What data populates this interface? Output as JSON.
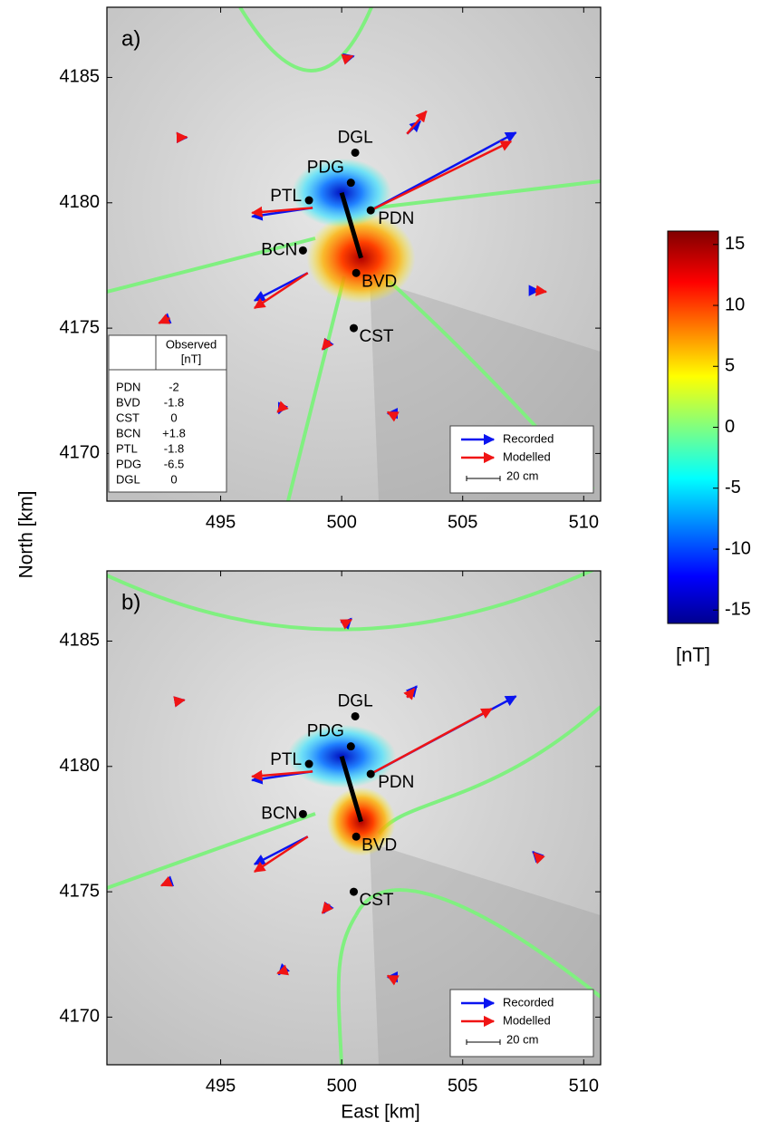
{
  "chart_data": [
    {
      "type": "vector-map",
      "title": "a)",
      "xlim": [
        490.3,
        510.7
      ],
      "ylim": [
        4168.1,
        4187.8
      ],
      "xticks": [
        495,
        500,
        505,
        510
      ],
      "yticks": [
        4170,
        4175,
        4180,
        4185
      ],
      "fault": {
        "x": [
          500.0,
          500.8
        ],
        "y": [
          4180.4,
          4177.8
        ]
      },
      "stations": [
        {
          "name": "DGL",
          "x": 500.56,
          "y": 4182.0
        },
        {
          "name": "PDG",
          "x": 500.38,
          "y": 4180.8
        },
        {
          "name": "PTL",
          "x": 498.65,
          "y": 4180.1
        },
        {
          "name": "PDN",
          "x": 501.2,
          "y": 4179.7
        },
        {
          "name": "BCN",
          "x": 498.4,
          "y": 4178.1
        },
        {
          "name": "BVD",
          "x": 500.6,
          "y": 4177.2
        },
        {
          "name": "CST",
          "x": 500.5,
          "y": 4175.0
        }
      ],
      "vectors": [
        {
          "x": 500.3,
          "y": 4185.8,
          "recorded": [
            0.2,
            0.05
          ],
          "modelled": [
            0.15,
            0.05
          ]
        },
        {
          "x": 493.2,
          "y": 4182.6,
          "recorded": [
            0.4,
            0
          ],
          "modelled": [
            0.4,
            0.02
          ]
        },
        {
          "x": 501.2,
          "y": 4179.7,
          "recorded": [
            6.0,
            3.1
          ],
          "modelled": [
            5.8,
            2.75
          ]
        },
        {
          "x": 502.7,
          "y": 4182.75,
          "recorded": [
            0.55,
            0.5
          ],
          "modelled": [
            0.8,
            0.9
          ]
        },
        {
          "x": 498.8,
          "y": 4179.8,
          "recorded": [
            -2.5,
            -0.35
          ],
          "modelled": [
            -2.5,
            -0.2
          ]
        },
        {
          "x": 498.6,
          "y": 4177.2,
          "recorded": [
            -2.2,
            -1.1
          ],
          "modelled": [
            -2.2,
            -1.4
          ]
        },
        {
          "x": 492.9,
          "y": 4175.4,
          "recorded": [
            -0.4,
            -0.15
          ],
          "modelled": [
            -0.45,
            -0.2
          ]
        },
        {
          "x": 508.0,
          "y": 4176.5,
          "recorded": [
            0.15,
            0
          ],
          "modelled": [
            0.45,
            -0.05
          ]
        },
        {
          "x": 499.5,
          "y": 4174.5,
          "recorded": [
            -0.25,
            -0.35
          ],
          "modelled": [
            -0.3,
            -0.35
          ]
        },
        {
          "x": 497.5,
          "y": 4171.8,
          "recorded": [
            -0.1,
            -0.2
          ],
          "modelled": [
            -0.15,
            -0.15
          ]
        },
        {
          "x": 502.0,
          "y": 4171.6,
          "recorded": [
            -0.1,
            0
          ],
          "modelled": [
            -0.1,
            0.05
          ]
        }
      ],
      "legend": [
        {
          "name": "Recorded",
          "color": "#0a14f0"
        },
        {
          "name": "Modelled",
          "color": "#f01414"
        }
      ],
      "scale_label": "20 cm",
      "table": {
        "header": [
          "Observed",
          "[nT]"
        ],
        "rows": [
          [
            "PDN",
            "-2"
          ],
          [
            "BVD",
            "-1.8"
          ],
          [
            "CST",
            "0"
          ],
          [
            "BCN",
            "+1.8"
          ],
          [
            "PTL",
            "-1.8"
          ],
          [
            "PDG",
            "-6.5"
          ],
          [
            "DGL",
            "0"
          ]
        ]
      }
    },
    {
      "type": "vector-map",
      "title": "b)",
      "xlim": [
        490.3,
        510.7
      ],
      "ylim": [
        4168.1,
        4187.8
      ],
      "xticks": [
        495,
        500,
        505,
        510
      ],
      "yticks": [
        4170,
        4175,
        4180,
        4185
      ],
      "fault": {
        "x": [
          500.0,
          500.8
        ],
        "y": [
          4180.4,
          4177.8
        ]
      },
      "stations": [
        {
          "name": "DGL",
          "x": 500.56,
          "y": 4182.0
        },
        {
          "name": "PDG",
          "x": 500.38,
          "y": 4180.8
        },
        {
          "name": "PTL",
          "x": 498.65,
          "y": 4180.1
        },
        {
          "name": "PDN",
          "x": 501.2,
          "y": 4179.7
        },
        {
          "name": "BCN",
          "x": 498.4,
          "y": 4178.1
        },
        {
          "name": "BVD",
          "x": 500.6,
          "y": 4177.2
        },
        {
          "name": "CST",
          "x": 500.5,
          "y": 4175.0
        }
      ],
      "vectors": [
        {
          "x": 500.3,
          "y": 4185.8,
          "recorded": [
            0.1,
            0.1
          ],
          "modelled": [
            0.1,
            0.05
          ]
        },
        {
          "x": 493.2,
          "y": 4182.6,
          "recorded": [
            0.3,
            0.05
          ],
          "modelled": [
            0.3,
            0.05
          ]
        },
        {
          "x": 501.2,
          "y": 4179.7,
          "recorded": [
            6.0,
            3.1
          ],
          "modelled": [
            5.0,
            2.6
          ]
        },
        {
          "x": 502.7,
          "y": 4182.75,
          "recorded": [
            0.4,
            0.45
          ],
          "modelled": [
            0.3,
            0.35
          ]
        },
        {
          "x": 498.8,
          "y": 4179.8,
          "recorded": [
            -2.5,
            -0.35
          ],
          "modelled": [
            -2.5,
            -0.2
          ]
        },
        {
          "x": 498.6,
          "y": 4177.2,
          "recorded": [
            -2.2,
            -1.1
          ],
          "modelled": [
            -2.2,
            -1.4
          ]
        },
        {
          "x": 492.9,
          "y": 4175.4,
          "recorded": [
            -0.3,
            -0.1
          ],
          "modelled": [
            -0.35,
            -0.15
          ]
        },
        {
          "x": 508.0,
          "y": 4176.5,
          "recorded": [
            -0.1,
            0.1
          ],
          "modelled": [
            -0.05,
            0.05
          ]
        },
        {
          "x": 499.5,
          "y": 4174.5,
          "recorded": [
            -0.25,
            -0.35
          ],
          "modelled": [
            -0.3,
            -0.35
          ]
        },
        {
          "x": 497.5,
          "y": 4171.8,
          "recorded": [
            -0.1,
            -0.1
          ],
          "modelled": [
            -0.15,
            -0.05
          ]
        },
        {
          "x": 502.0,
          "y": 4171.6,
          "recorded": [
            -0.1,
            0
          ],
          "modelled": [
            -0.1,
            0.05
          ]
        }
      ],
      "legend": [
        {
          "name": "Recorded",
          "color": "#0a14f0"
        },
        {
          "name": "Modelled",
          "color": "#f01414"
        }
      ],
      "scale_label": "20 cm"
    }
  ],
  "x_label": "East [km]",
  "y_label": "North [km]",
  "colorbar": {
    "label": "[nT]",
    "clim": [
      -16.1,
      16.1
    ],
    "ticks": [
      15,
      10,
      5,
      0,
      -5,
      -10,
      -15
    ]
  }
}
